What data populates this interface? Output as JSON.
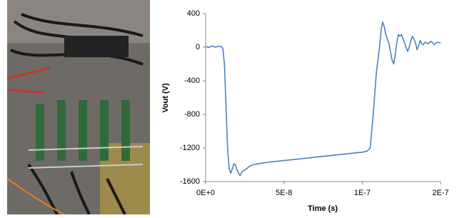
{
  "chart_data": {
    "type": "line",
    "x_label": "Time (s)",
    "y_label": "Vout (V)",
    "x": [
      0,
      2e-09,
      4e-09,
      6e-09,
      8e-09,
      1e-08,
      1.1e-08,
      1.2e-08,
      1.3e-08,
      1.4e-08,
      1.5e-08,
      1.6e-08,
      1.7e-08,
      1.8e-08,
      1.9e-08,
      2e-08,
      2.1e-08,
      2.2e-08,
      2.3e-08,
      2.4e-08,
      2.6e-08,
      2.8e-08,
      3e-08,
      3.3e-08,
      3.6e-08,
      4e-08,
      4.5e-08,
      5e-08,
      5.5e-08,
      6e-08,
      6.5e-08,
      7e-08,
      7.5e-08,
      8e-08,
      8.5e-08,
      9e-08,
      9.5e-08,
      1e-07,
      1.03e-07,
      1.05e-07,
      1.07e-07,
      1.09e-07,
      1.11e-07,
      1.12e-07,
      1.13e-07,
      1.14e-07,
      1.15e-07,
      1.16e-07,
      1.17e-07,
      1.18e-07,
      1.19e-07,
      1.2e-07,
      1.21e-07,
      1.22e-07,
      1.23e-07,
      1.24e-07,
      1.25e-07,
      1.26e-07,
      1.27e-07,
      1.28e-07,
      1.29e-07,
      1.3e-07,
      1.31e-07,
      1.32e-07,
      1.33e-07,
      1.34e-07,
      1.35e-07,
      1.36e-07,
      1.37e-07,
      1.38e-07,
      1.39e-07,
      1.4e-07,
      1.42e-07,
      1.44e-07,
      1.46e-07,
      1.48e-07,
      1.5e-07
    ],
    "values": [
      10,
      -5,
      15,
      0,
      10,
      5,
      -20,
      -200,
      -700,
      -1200,
      -1450,
      -1500,
      -1450,
      -1390,
      -1400,
      -1460,
      -1500,
      -1530,
      -1490,
      -1470,
      -1450,
      -1420,
      -1400,
      -1390,
      -1380,
      -1370,
      -1360,
      -1350,
      -1340,
      -1330,
      -1320,
      -1310,
      -1300,
      -1290,
      -1280,
      -1270,
      -1260,
      -1250,
      -1240,
      -1200,
      -800,
      -300,
      0,
      200,
      300,
      250,
      150,
      100,
      50,
      -50,
      -150,
      -200,
      -100,
      50,
      150,
      130,
      150,
      100,
      50,
      0,
      -50,
      0,
      80,
      130,
      100,
      50,
      -30,
      20,
      80,
      40,
      30,
      60,
      40,
      70,
      30,
      60,
      50
    ],
    "color": "#4f81bd",
    "xlim": [
      0,
      1.5e-07
    ],
    "xticks": [
      {
        "value": 0,
        "label": "0E+0"
      },
      {
        "value": 5e-08,
        "label": "5E-8"
      },
      {
        "value": 1e-07,
        "label": "1E-7"
      },
      {
        "value": 1.5e-07,
        "label": "2E-7"
      }
    ],
    "ylim": [
      -1600,
      400
    ],
    "yticks": [
      400,
      0,
      -400,
      -800,
      -1200,
      -1600
    ],
    "grid": false
  }
}
